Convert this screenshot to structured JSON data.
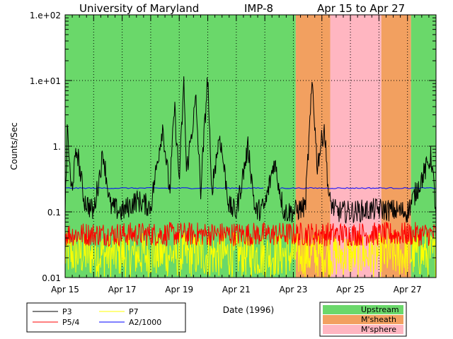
{
  "header": {
    "left": "University of Maryland",
    "center": "IMP-8",
    "right": "Apr 15 to Apr 27"
  },
  "chart_data": {
    "type": "line",
    "title": "",
    "xlabel": "Date (1996)",
    "ylabel": "Counts/Sec",
    "yscale": "log",
    "ylim": [
      0.01,
      100
    ],
    "xlim": [
      "1996-04-15",
      "1996-04-28"
    ],
    "grid": true,
    "x_tick_labels": [
      "Apr 15",
      "Apr 17",
      "Apr 19",
      "Apr 21",
      "Apr 23",
      "Apr 25",
      "Apr 27"
    ],
    "y_tick_labels": [
      "1.e+02",
      "1.e+01",
      "1.",
      "0.1",
      "0.01"
    ],
    "y_tick_values": [
      100,
      10,
      1,
      0.1,
      0.01
    ],
    "regions": [
      {
        "name": "Upstream",
        "start": "1996-04-15T00:00",
        "end": "1996-04-23T02:00",
        "color": "#6ad86a"
      },
      {
        "name": "M'sheath",
        "start": "1996-04-23T02:00",
        "end": "1996-04-24T07:00",
        "color": "#f2a060"
      },
      {
        "name": "M'sphere",
        "start": "1996-04-24T07:00",
        "end": "1996-04-26T02:00",
        "color": "#ffb6c1"
      },
      {
        "name": "M'sheath",
        "start": "1996-04-26T02:00",
        "end": "1996-04-27T03:00",
        "color": "#f2a060"
      },
      {
        "name": "Upstream",
        "start": "1996-04-27T03:00",
        "end": "1996-04-28T00:00",
        "color": "#6ad86a"
      }
    ],
    "series": [
      {
        "name": "P3",
        "color": "#000000",
        "approx_points": [
          [
            "1996-04-15T00:00",
            0.1
          ],
          [
            "1996-04-15T02:00",
            2.0
          ],
          [
            "1996-04-15T05:00",
            0.2
          ],
          [
            "1996-04-15T10:00",
            0.9
          ],
          [
            "1996-04-15T16:00",
            0.15
          ],
          [
            "1996-04-16T00:00",
            0.1
          ],
          [
            "1996-04-16T08:00",
            0.8
          ],
          [
            "1996-04-16T14:00",
            0.12
          ],
          [
            "1996-04-17T00:00",
            0.1
          ],
          [
            "1996-04-17T12:00",
            0.15
          ],
          [
            "1996-04-18T00:00",
            0.12
          ],
          [
            "1996-04-18T10:00",
            2.0
          ],
          [
            "1996-04-18T16:00",
            0.2
          ],
          [
            "1996-04-18T20:00",
            4.0
          ],
          [
            "1996-04-19T00:00",
            0.3
          ],
          [
            "1996-04-19T04:00",
            10.0
          ],
          [
            "1996-04-19T06:00",
            0.4
          ],
          [
            "1996-04-19T14:00",
            5.0
          ],
          [
            "1996-04-19T18:00",
            0.2
          ],
          [
            "1996-04-20T00:00",
            12.0
          ],
          [
            "1996-04-20T03:00",
            0.2
          ],
          [
            "1996-04-20T10:00",
            1.5
          ],
          [
            "1996-04-20T18:00",
            0.12
          ],
          [
            "1996-04-21T00:00",
            0.1
          ],
          [
            "1996-04-21T10:00",
            1.0
          ],
          [
            "1996-04-21T16:00",
            0.1
          ],
          [
            "1996-04-22T00:00",
            0.12
          ],
          [
            "1996-04-22T08:00",
            0.6
          ],
          [
            "1996-04-22T16:00",
            0.1
          ],
          [
            "1996-04-23T00:00",
            0.1
          ],
          [
            "1996-04-23T10:00",
            0.12
          ],
          [
            "1996-04-23T16:00",
            10.0
          ],
          [
            "1996-04-23T20:00",
            0.5
          ],
          [
            "1996-04-24T02:00",
            2.0
          ],
          [
            "1996-04-24T06:00",
            0.15
          ],
          [
            "1996-04-24T12:00",
            0.1
          ],
          [
            "1996-04-25T00:00",
            0.1
          ],
          [
            "1996-04-26T00:00",
            0.11
          ],
          [
            "1996-04-27T00:00",
            0.1
          ],
          [
            "1996-04-27T20:00",
            0.7
          ],
          [
            "1996-04-28T00:00",
            0.1
          ]
        ]
      },
      {
        "name": "P5/4",
        "color": "#ff0000",
        "approx_range": [
          0.03,
          0.07
        ]
      },
      {
        "name": "P7",
        "color": "#ffff00",
        "approx_range": [
          0.01,
          0.05
        ]
      },
      {
        "name": "A2/1000",
        "color": "#0000ff",
        "approx_value": 0.23,
        "gap": [
          "1996-04-22T00:00",
          "1996-04-22T12:00"
        ]
      }
    ],
    "legend_series": [
      "P3",
      "P7",
      "P5/4",
      "A2/1000"
    ],
    "legend_regions": [
      "Upstream",
      "M'sheath",
      "M'sphere"
    ]
  }
}
